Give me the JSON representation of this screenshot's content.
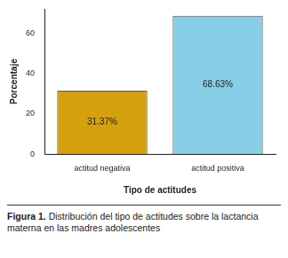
{
  "chart_data": {
    "type": "bar",
    "title": "Figura 1. Distribución del tipo de actitudes sobre la lactancia materna en las madres adolescentes",
    "x_label": "Tipo de actitudes",
    "y_label": "Porcentaje",
    "categories": [
      "actitud negativa",
      "actitud positiva"
    ],
    "values": [
      31.37,
      68.63
    ],
    "value_labels": [
      "31.37%",
      "68.63%"
    ],
    "colors": [
      "#d4a10c",
      "#87cfe6"
    ],
    "ylim": [
      0,
      72
    ],
    "yticks": [
      0,
      20,
      40,
      60
    ],
    "grid": false,
    "data_labels": true
  }
}
